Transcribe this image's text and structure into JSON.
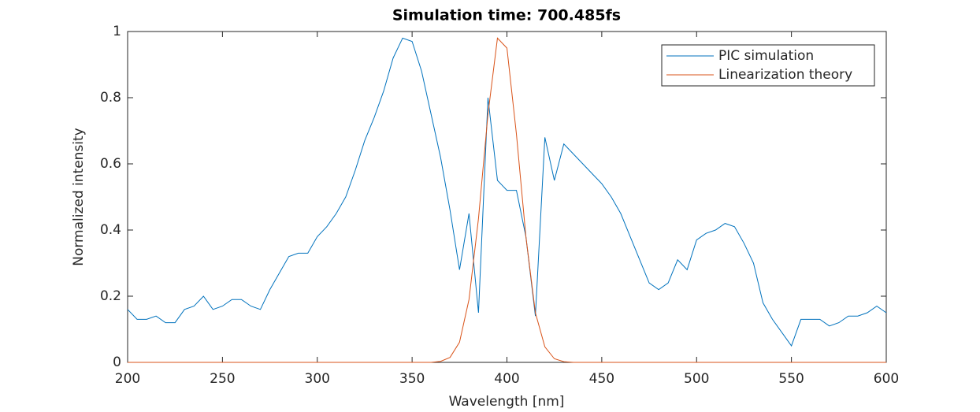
{
  "chart_data": {
    "type": "line",
    "title": "Simulation time: 700.485fs",
    "x_label": "Wavelength [nm]",
    "y_label": "Normalized intensity",
    "x": [
      200,
      205,
      210,
      215,
      220,
      225,
      230,
      235,
      240,
      245,
      250,
      255,
      260,
      265,
      270,
      275,
      280,
      285,
      290,
      295,
      300,
      305,
      310,
      315,
      320,
      325,
      330,
      335,
      340,
      345,
      350,
      355,
      360,
      365,
      370,
      375,
      380,
      385,
      390,
      395,
      400,
      405,
      410,
      415,
      420,
      425,
      430,
      435,
      440,
      445,
      450,
      455,
      460,
      465,
      470,
      475,
      480,
      485,
      490,
      495,
      500,
      505,
      510,
      515,
      520,
      525,
      530,
      535,
      540,
      545,
      550,
      555,
      560,
      565,
      570,
      575,
      580,
      585,
      590,
      595,
      600
    ],
    "series": [
      {
        "name": "PIC simulation",
        "color": "#0072bd",
        "values": [
          0.16,
          0.13,
          0.13,
          0.14,
          0.12,
          0.12,
          0.16,
          0.17,
          0.2,
          0.16,
          0.17,
          0.19,
          0.19,
          0.17,
          0.16,
          0.22,
          0.27,
          0.32,
          0.33,
          0.33,
          0.38,
          0.41,
          0.45,
          0.5,
          0.58,
          0.67,
          0.74,
          0.82,
          0.92,
          0.98,
          0.97,
          0.88,
          0.75,
          0.62,
          0.46,
          0.28,
          0.45,
          0.15,
          0.8,
          0.55,
          0.52,
          0.52,
          0.38,
          0.14,
          0.68,
          0.55,
          0.66,
          0.63,
          0.6,
          0.57,
          0.54,
          0.5,
          0.45,
          0.38,
          0.31,
          0.24,
          0.22,
          0.24,
          0.31,
          0.28,
          0.37,
          0.39,
          0.4,
          0.42,
          0.41,
          0.36,
          0.3,
          0.18,
          0.13,
          0.09,
          0.05,
          0.13,
          0.13,
          0.13,
          0.11,
          0.12,
          0.14,
          0.14,
          0.15,
          0.17,
          0.15
        ]
      },
      {
        "name": "Linearization theory",
        "color": "#d95319",
        "values": [
          0,
          0,
          0,
          0,
          0,
          0,
          0,
          0,
          0,
          0,
          0,
          0,
          0,
          0,
          0,
          0,
          0,
          0,
          0,
          0,
          0,
          0,
          0,
          0,
          0,
          0,
          0,
          0,
          0,
          0,
          0,
          0,
          0,
          0.003,
          0.015,
          0.061,
          0.19,
          0.435,
          0.75,
          0.98,
          0.95,
          0.69,
          0.38,
          0.15,
          0.047,
          0.011,
          0.002,
          0,
          0,
          0,
          0,
          0,
          0,
          0,
          0,
          0,
          0,
          0,
          0,
          0,
          0,
          0,
          0,
          0,
          0,
          0,
          0,
          0,
          0,
          0,
          0,
          0,
          0,
          0,
          0,
          0,
          0,
          0,
          0,
          0,
          0
        ]
      }
    ],
    "xlim": [
      200,
      600
    ],
    "ylim": [
      0,
      1
    ],
    "xticks": [
      200,
      250,
      300,
      350,
      400,
      450,
      500,
      550,
      600
    ],
    "yticks": [
      0,
      0.2,
      0.4,
      0.6,
      0.8,
      1
    ],
    "grid": false,
    "legend_position": "upper-right"
  }
}
